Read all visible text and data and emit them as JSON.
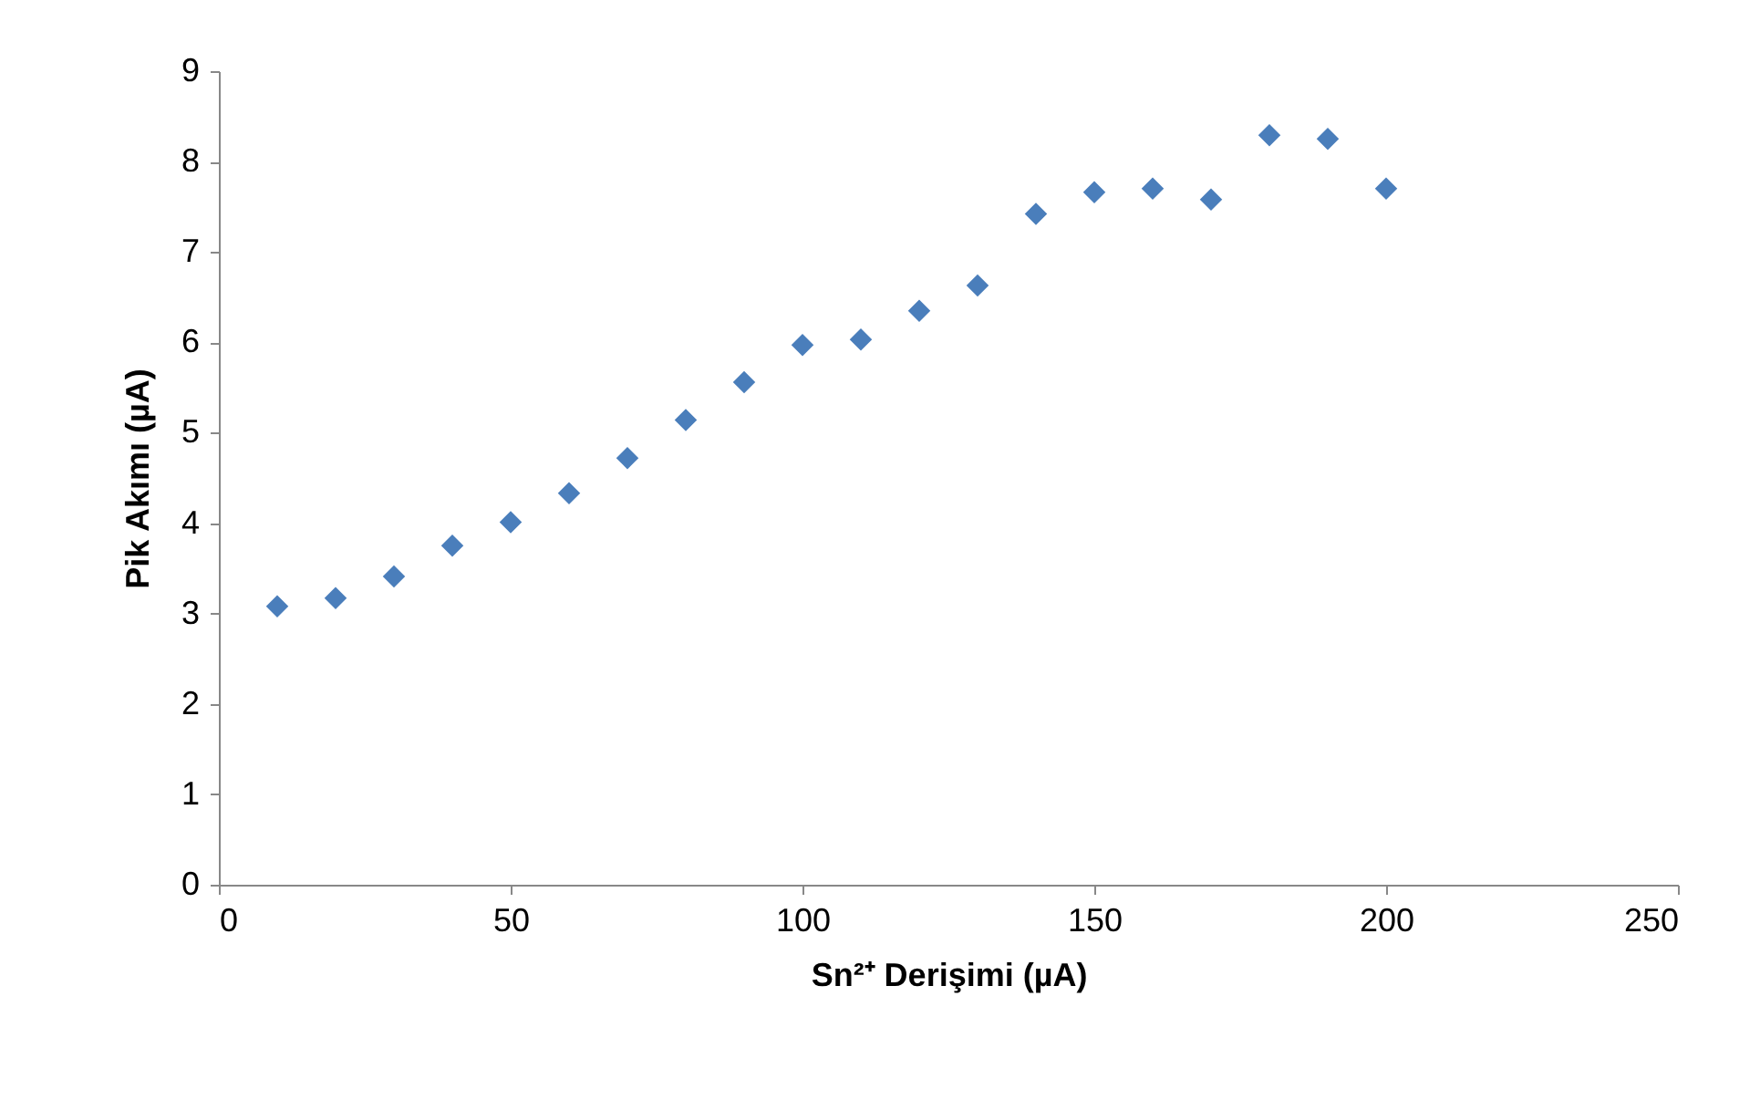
{
  "chart_data": {
    "type": "scatter",
    "xlabel": "Sn²⁺ Derişimi (µA)",
    "ylabel": "Pik Akımı (µA)",
    "x": [
      10,
      20,
      30,
      40,
      50,
      60,
      70,
      80,
      90,
      100,
      110,
      120,
      130,
      140,
      150,
      160,
      170,
      180,
      190,
      200
    ],
    "series": [
      {
        "color": "#4a7ebb",
        "values": [
          3.08,
          3.17,
          3.41,
          3.75,
          4.01,
          4.33,
          4.72,
          5.14,
          5.56,
          5.97,
          6.03,
          6.35,
          6.63,
          7.42,
          7.66,
          7.7,
          7.58,
          8.29,
          8.25,
          7.7
        ]
      }
    ],
    "xlim": [
      0,
      250
    ],
    "xticks": [
      0,
      50,
      100,
      150,
      200,
      250
    ],
    "ylim": [
      0,
      9
    ],
    "yticks": [
      0,
      1,
      2,
      3,
      4,
      5,
      6,
      7,
      8,
      9
    ],
    "marker": "diamond",
    "grid": false
  }
}
